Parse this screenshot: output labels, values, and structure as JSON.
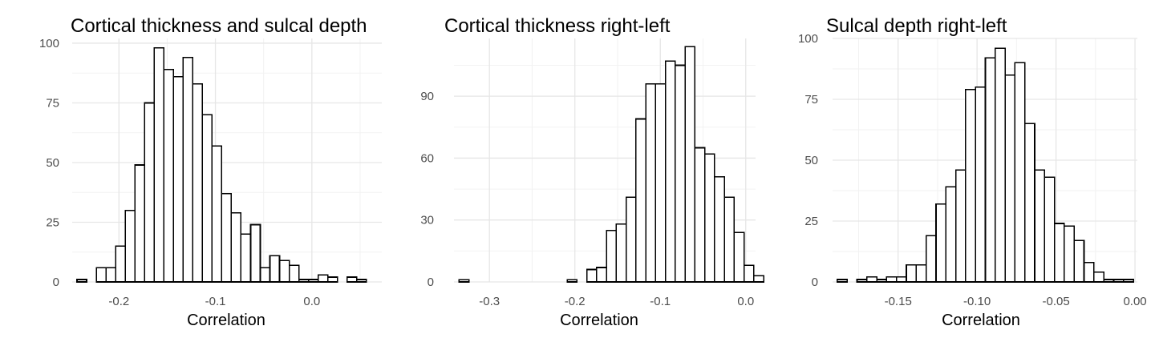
{
  "chart_data": [
    {
      "type": "histogram",
      "title": "Cortical thickness and sulcal depth",
      "xlabel": "Correlation",
      "ylabel": "",
      "grid": true,
      "xlim": [
        -0.2485,
        0.0725
      ],
      "ylim": [
        0,
        102
      ],
      "x_ticks": [
        -0.2,
        -0.1,
        0.0
      ],
      "x_tick_labels": [
        "-0.2",
        "-0.1",
        "0.0"
      ],
      "y_ticks": [
        0,
        25,
        50,
        75,
        100
      ],
      "y_tick_labels": [
        "0",
        "25",
        "50",
        "75",
        "100"
      ],
      "bin_start": -0.2435,
      "bin_width": 0.01,
      "counts": [
        1,
        0,
        6,
        6,
        15,
        30,
        49,
        75,
        98,
        89,
        86,
        94,
        83,
        70,
        57,
        37,
        29,
        20,
        24,
        6,
        11,
        9,
        7,
        1,
        1,
        3,
        2,
        0,
        2,
        1
      ]
    },
    {
      "type": "histogram",
      "title": "Cortical thickness right-left",
      "xlabel": "Correlation",
      "ylabel": "",
      "grid": true,
      "xlim": [
        -0.3415,
        0.0115
      ],
      "ylim": [
        0,
        118
      ],
      "x_ticks": [
        -0.3,
        -0.2,
        -0.1,
        0.0
      ],
      "x_tick_labels": [
        "-0.3",
        "-0.2",
        "-0.1",
        "0.0"
      ],
      "y_ticks": [
        0,
        30,
        60,
        90
      ],
      "y_tick_labels": [
        "0",
        "30",
        "60",
        "90"
      ],
      "bin_start": -0.3355,
      "bin_width": 0.0115,
      "counts": [
        1,
        0,
        0,
        0,
        0,
        0,
        0,
        0,
        0,
        0,
        0,
        1,
        0,
        6,
        7,
        25,
        28,
        41,
        79,
        96,
        96,
        107,
        105,
        114,
        65,
        62,
        51,
        41,
        24,
        8,
        3
      ]
    },
    {
      "type": "histogram",
      "title": "Sulcal depth right-left",
      "xlabel": "Correlation",
      "ylabel": "",
      "grid": true,
      "xlim": [
        -0.1915,
        0.0015
      ],
      "ylim": [
        0,
        100
      ],
      "x_ticks": [
        -0.15,
        -0.1,
        -0.05,
        0.0
      ],
      "x_tick_labels": [
        "-0.15",
        "-0.10",
        "-0.05",
        "0.00"
      ],
      "y_ticks": [
        0,
        25,
        50,
        75,
        100
      ],
      "y_tick_labels": [
        "0",
        "25",
        "50",
        "75",
        "100"
      ],
      "bin_start": -0.1885,
      "bin_width": 0.00625,
      "counts": [
        1,
        0,
        1,
        2,
        1,
        2,
        2,
        7,
        7,
        19,
        32,
        39,
        46,
        79,
        80,
        92,
        96,
        85,
        90,
        65,
        46,
        43,
        24,
        23,
        17,
        8,
        4,
        1,
        1,
        1
      ]
    }
  ]
}
